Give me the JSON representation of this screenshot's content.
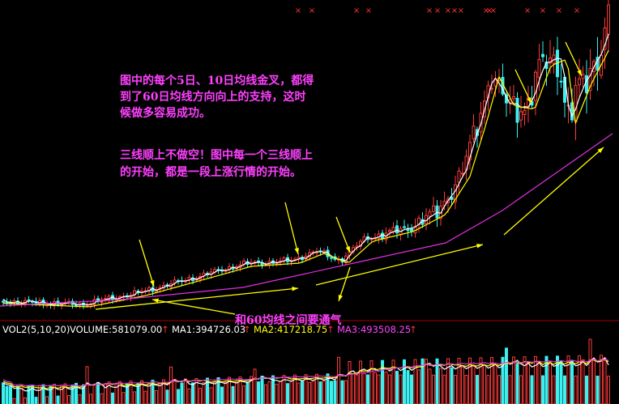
{
  "annotations": {
    "golden_cross": [
      "图中的每个5日、10日均线金叉，都得",
      "到了60日均线方向向上的支持，这时",
      "候做多容易成功。"
    ],
    "three_lines": [
      "三线顺上不做空！图中每一个三线顺上",
      "的开始，都是一段上涨行情的开始。"
    ],
    "gap_note": "和60均线之间要通气"
  },
  "volume_panel": {
    "label": "VOL2(5,10,20)",
    "volume": "VOLUME:581079.00",
    "ma1": "MA1:394726.03",
    "ma2": "MA2:417218.75",
    "ma3": "MA3:493508.25",
    "up_arrow": "↑"
  },
  "marker": "×"
}
